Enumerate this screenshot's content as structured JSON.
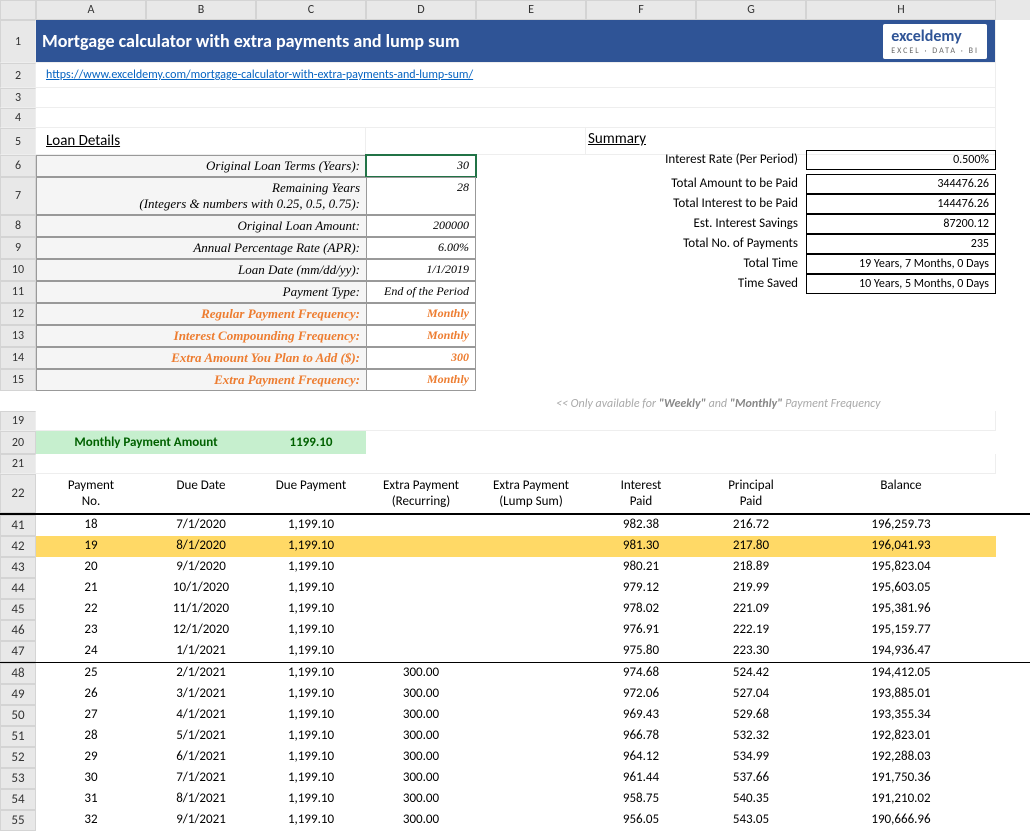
{
  "colLetters": [
    "A",
    "B",
    "C",
    "D",
    "E",
    "F",
    "G",
    "H"
  ],
  "title": "Mortgage calculator with extra payments and lump sum",
  "logo": {
    "text": "exceldemy",
    "sub": "EXCEL · DATA · BI"
  },
  "link": "https://www.exceldemy.com/mortgage-calculator-with-extra-payments-and-lump-sum/",
  "loanDetailsLabel": "Loan Details",
  "summaryLabel": "Summary",
  "loanDetails": [
    {
      "row": "6",
      "label": "Original Loan Terms (Years):",
      "value": "30",
      "selected": true
    },
    {
      "row": "7",
      "label": "Remaining Years\n(Integers & numbers with 0.25, 0.5, 0.75):",
      "value": "28"
    },
    {
      "row": "8",
      "label": "Original Loan Amount:",
      "value": "200000"
    },
    {
      "row": "9",
      "label": "Annual Percentage Rate (APR):",
      "value": "6.00%"
    },
    {
      "row": "10",
      "label": "Loan Date (mm/dd/yy):",
      "value": "1/1/2019"
    },
    {
      "row": "11",
      "label": "Payment Type:",
      "value": "End of the Period"
    },
    {
      "row": "12",
      "label": "Regular Payment Frequency:",
      "value": "Monthly",
      "orange": true
    },
    {
      "row": "13",
      "label": "Interest Compounding Frequency:",
      "value": "Monthly",
      "orange": true
    },
    {
      "row": "14",
      "label": "Extra Amount You Plan to Add ($):",
      "value": "300",
      "orange": true
    },
    {
      "row": "15",
      "label": "Extra Payment Frequency:",
      "value": "Monthly",
      "orange": true
    }
  ],
  "summary": [
    {
      "label": "Interest Rate (Per Period)",
      "value": "0.500%"
    },
    {
      "label": "",
      "value": ""
    },
    {
      "label": "Total Amount to be Paid",
      "value": "344476.26"
    },
    {
      "label": "Total Interest to be Paid",
      "value": "144476.26"
    },
    {
      "label": "Est. Interest Savings",
      "value": "87200.12"
    },
    {
      "label": "Total No. of Payments",
      "value": "235"
    },
    {
      "label": "Total Time",
      "value": "19 Years, 7 Months, 0 Days"
    },
    {
      "label": "Time Saved",
      "value": "10 Years, 5 Months, 0 Days"
    }
  ],
  "note": {
    "pre": "<< Only available for  ",
    "b1": "\"Weekly\"",
    "mid": "  and  ",
    "b2": "\"Monthly\"",
    "post": "  Payment Frequency"
  },
  "mpa": {
    "label": "Monthly Payment Amount",
    "value": "1199.10"
  },
  "tableHeaders": [
    "Payment\nNo.",
    "Due Date",
    "Due Payment",
    "Extra Payment\n(Recurring)",
    "Extra Payment\n(Lump Sum)",
    "Interest\nPaid",
    "Principal\nPaid",
    "Balance"
  ],
  "schedule": [
    {
      "r": "41",
      "no": "18",
      "date": "7/1/2020",
      "due": "1,199.10",
      "ex": "",
      "ls": "",
      "int": "982.38",
      "prin": "216.72",
      "bal": "196,259.73"
    },
    {
      "r": "42",
      "no": "19",
      "date": "8/1/2020",
      "due": "1,199.10",
      "ex": "",
      "ls": "",
      "int": "981.30",
      "prin": "217.80",
      "bal": "196,041.93",
      "hl": true
    },
    {
      "r": "43",
      "no": "20",
      "date": "9/1/2020",
      "due": "1,199.10",
      "ex": "",
      "ls": "",
      "int": "980.21",
      "prin": "218.89",
      "bal": "195,823.04"
    },
    {
      "r": "44",
      "no": "21",
      "date": "10/1/2020",
      "due": "1,199.10",
      "ex": "",
      "ls": "",
      "int": "979.12",
      "prin": "219.99",
      "bal": "195,603.05"
    },
    {
      "r": "45",
      "no": "22",
      "date": "11/1/2020",
      "due": "1,199.10",
      "ex": "",
      "ls": "",
      "int": "978.02",
      "prin": "221.09",
      "bal": "195,381.96"
    },
    {
      "r": "46",
      "no": "23",
      "date": "12/1/2020",
      "due": "1,199.10",
      "ex": "",
      "ls": "",
      "int": "976.91",
      "prin": "222.19",
      "bal": "195,159.77"
    },
    {
      "r": "47",
      "no": "24",
      "date": "1/1/2021",
      "due": "1,199.10",
      "ex": "",
      "ls": "",
      "int": "975.80",
      "prin": "223.30",
      "bal": "194,936.47",
      "sep": true
    },
    {
      "r": "48",
      "no": "25",
      "date": "2/1/2021",
      "due": "1,199.10",
      "ex": "300.00",
      "ls": "",
      "int": "974.68",
      "prin": "524.42",
      "bal": "194,412.05"
    },
    {
      "r": "49",
      "no": "26",
      "date": "3/1/2021",
      "due": "1,199.10",
      "ex": "300.00",
      "ls": "",
      "int": "972.06",
      "prin": "527.04",
      "bal": "193,885.01"
    },
    {
      "r": "50",
      "no": "27",
      "date": "4/1/2021",
      "due": "1,199.10",
      "ex": "300.00",
      "ls": "",
      "int": "969.43",
      "prin": "529.68",
      "bal": "193,355.34"
    },
    {
      "r": "51",
      "no": "28",
      "date": "5/1/2021",
      "due": "1,199.10",
      "ex": "300.00",
      "ls": "",
      "int": "966.78",
      "prin": "532.32",
      "bal": "192,823.01"
    },
    {
      "r": "52",
      "no": "29",
      "date": "6/1/2021",
      "due": "1,199.10",
      "ex": "300.00",
      "ls": "",
      "int": "964.12",
      "prin": "534.99",
      "bal": "192,288.03"
    },
    {
      "r": "53",
      "no": "30",
      "date": "7/1/2021",
      "due": "1,199.10",
      "ex": "300.00",
      "ls": "",
      "int": "961.44",
      "prin": "537.66",
      "bal": "191,750.36"
    },
    {
      "r": "54",
      "no": "31",
      "date": "8/1/2021",
      "due": "1,199.10",
      "ex": "300.00",
      "ls": "",
      "int": "958.75",
      "prin": "540.35",
      "bal": "191,210.02"
    },
    {
      "r": "55",
      "no": "32",
      "date": "9/1/2021",
      "due": "1,199.10",
      "ex": "300.00",
      "ls": "",
      "int": "956.05",
      "prin": "543.05",
      "bal": "190,666.96"
    }
  ],
  "rowsBeforeTableHead": [
    "19",
    "20",
    "21",
    "22"
  ]
}
